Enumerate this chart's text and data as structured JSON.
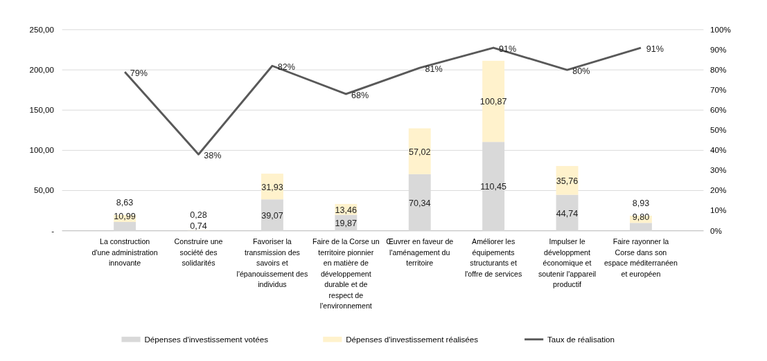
{
  "chart_data": {
    "type": "bar",
    "stacked": true,
    "categories": [
      "La construction d'une administration innovante",
      "Construire une société des solidarités",
      "Favoriser la transmission des savoirs et l'épanouissement des individus",
      "Faire de la Corse un territoire pionnier en matière de développement durable et de respect de l'environnement",
      "Œuvrer en faveur de l'aménagement du territoire",
      "Améliorer les équipements structurants et l'offre de services",
      "Impulser le développment économique et soutenir l'appareil productif",
      "Faire rayonner la Corse dans son espace méditerranéen et européen"
    ],
    "series": [
      {
        "name": "Dépenses d'investissement votées",
        "color": "#d9d9d9",
        "values": [
          10.99,
          0.74,
          39.07,
          19.87,
          70.34,
          110.45,
          44.74,
          9.8
        ],
        "value_labels": [
          "10,99",
          "0,74",
          "39,07",
          "19,87",
          "70,34",
          "110,45",
          "44,74",
          "9,80"
        ]
      },
      {
        "name": "Dépenses d'investissement réalisées",
        "color": "#fff2cc",
        "values": [
          8.63,
          0.28,
          31.93,
          13.46,
          57.02,
          100.87,
          35.76,
          8.93
        ],
        "value_labels": [
          "8,63",
          "0,28",
          "31,93",
          "13,46",
          "57,02",
          "100,87",
          "35,76",
          "8,93"
        ]
      },
      {
        "name": "Taux de réalisation",
        "type": "line",
        "axis": "y2",
        "color": "#595959",
        "values": [
          79,
          38,
          82,
          68,
          81,
          91,
          80,
          91
        ],
        "value_labels": [
          "79%",
          "38%",
          "82%",
          "68%",
          "81%",
          "91%",
          "80%",
          "91%"
        ]
      }
    ],
    "ylim": [
      0,
      250
    ],
    "yticks": [
      {
        "value": 0,
        "label": "-"
      },
      {
        "value": 50,
        "label": "50,00"
      },
      {
        "value": 100,
        "label": "100,00"
      },
      {
        "value": 150,
        "label": "150,00"
      },
      {
        "value": 200,
        "label": "200,00"
      },
      {
        "value": 250,
        "label": "250,00"
      }
    ],
    "y2lim": [
      0,
      100
    ],
    "y2ticks": [
      {
        "value": 0,
        "label": "0%"
      },
      {
        "value": 10,
        "label": "10%"
      },
      {
        "value": 20,
        "label": "20%"
      },
      {
        "value": 30,
        "label": "30%"
      },
      {
        "value": 40,
        "label": "40%"
      },
      {
        "value": 50,
        "label": "50%"
      },
      {
        "value": 60,
        "label": "60%"
      },
      {
        "value": 70,
        "label": "70%"
      },
      {
        "value": 80,
        "label": "80%"
      },
      {
        "value": 90,
        "label": "90%"
      },
      {
        "value": 100,
        "label": "100%"
      }
    ],
    "grid": "y",
    "legend": "bottom",
    "marker": "none",
    "line_style": "solid"
  }
}
